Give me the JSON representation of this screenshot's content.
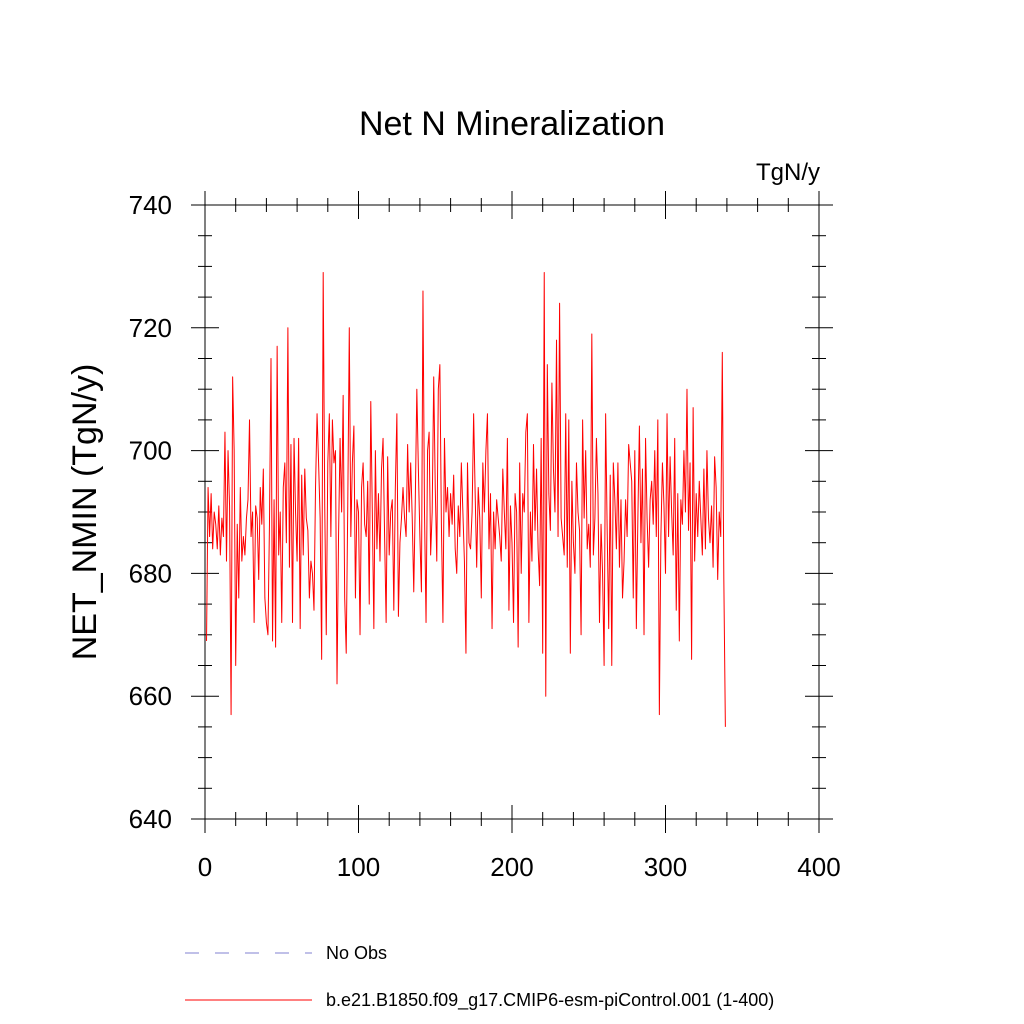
{
  "chart_data": {
    "type": "line",
    "title": "Net N Mineralization",
    "units": "TgN/y",
    "xlabel": "",
    "ylabel": "NET_NMIN  (TgN/y)",
    "xlim": [
      0,
      400
    ],
    "ylim": [
      640,
      740
    ],
    "x_ticks": [
      0,
      100,
      200,
      300,
      400
    ],
    "x_tick_labels": [
      "0",
      "100",
      "200",
      "300",
      "400"
    ],
    "y_ticks": [
      640,
      660,
      680,
      700,
      720,
      740
    ],
    "y_tick_labels": [
      "640",
      "660",
      "680",
      "700",
      "720",
      "740"
    ],
    "grid": false,
    "legend_position": "bottom",
    "legend": [
      {
        "label": "No Obs",
        "color": "#8080d0",
        "style": "dashed"
      },
      {
        "label": "b.e21.B1850.f09_g17.CMIP6-esm-piControl.001 (1-400)",
        "color": "#ff0000",
        "style": "solid"
      }
    ],
    "series": [
      {
        "name": "b.e21.B1850.f09_g17.CMIP6-esm-piControl.001 (1-400)",
        "color": "#ff0000",
        "x_start": 1,
        "x_step": 1,
        "values": [
          669,
          694,
          686,
          693,
          684,
          690,
          688,
          684,
          691,
          683,
          689,
          686,
          703,
          682,
          700,
          691,
          657,
          712,
          700,
          665,
          688,
          676,
          694,
          682,
          686,
          683,
          689,
          692,
          705,
          686,
          690,
          672,
          691,
          689,
          679,
          694,
          688,
          697,
          676,
          672,
          670,
          688,
          715,
          669,
          692,
          668,
          717,
          683,
          690,
          672,
          694,
          698,
          685,
          720,
          681,
          701,
          672,
          702,
          690,
          682,
          702,
          671,
          696,
          683,
          697,
          689,
          687,
          676,
          682,
          680,
          674,
          694,
          706,
          698,
          689,
          666,
          729,
          691,
          670,
          698,
          706,
          686,
          705,
          698,
          700,
          662,
          686,
          702,
          690,
          709,
          676,
          667,
          691,
          720,
          686,
          698,
          704,
          676,
          692,
          690,
          670,
          694,
          698,
          688,
          686,
          695,
          675,
          708,
          690,
          671,
          700,
          684,
          693,
          682,
          697,
          702,
          686,
          672,
          699,
          683,
          690,
          692,
          674,
          694,
          706,
          673,
          685,
          689,
          694,
          689,
          686,
          701,
          690,
          698,
          689,
          677,
          692,
          710,
          697,
          686,
          677,
          726,
          690,
          672,
          700,
          703,
          683,
          690,
          712,
          694,
          682,
          710,
          714,
          688,
          672,
          702,
          690,
          694,
          686,
          693,
          688,
          696,
          684,
          680,
          691,
          686,
          698,
          690,
          682,
          667,
          698,
          685,
          684,
          690,
          706,
          693,
          681,
          694,
          689,
          676,
          698,
          690,
          700,
          706,
          684,
          693,
          671,
          690,
          684,
          692,
          689,
          686,
          682,
          697,
          690,
          684,
          702,
          674,
          691,
          685,
          672,
          693,
          690,
          668,
          698,
          680,
          693,
          690,
          703,
          706,
          672,
          690,
          682,
          701,
          687,
          697,
          684,
          678,
          702,
          667,
          729,
          660,
          714,
          693,
          687,
          711,
          697,
          690,
          718,
          686,
          724,
          689,
          686,
          683,
          706,
          681,
          705,
          667,
          695,
          685,
          680,
          698,
          690,
          687,
          670,
          705,
          689,
          700,
          684,
          688,
          681,
          719,
          683,
          689,
          702,
          693,
          672,
          688,
          680,
          665,
          706,
          687,
          671,
          696,
          665,
          698,
          692,
          684,
          698,
          681,
          692,
          676,
          682,
          692,
          686,
          701,
          698,
          695,
          676,
          700,
          671,
          689,
          704,
          685,
          697,
          670,
          702,
          689,
          681,
          692,
          695,
          688,
          700,
          686,
          705,
          657,
          686,
          698,
          691,
          680,
          706,
          686,
          699,
          690,
          683,
          702,
          674,
          693,
          669,
          692,
          688,
          700,
          690,
          710,
          687,
          698,
          666,
          707,
          682,
          693,
          686,
          695,
          689,
          683,
          697,
          684,
          700,
          689,
          685,
          691,
          681,
          699,
          694,
          679,
          690,
          686,
          716,
          679,
          655
        ]
      }
    ]
  }
}
